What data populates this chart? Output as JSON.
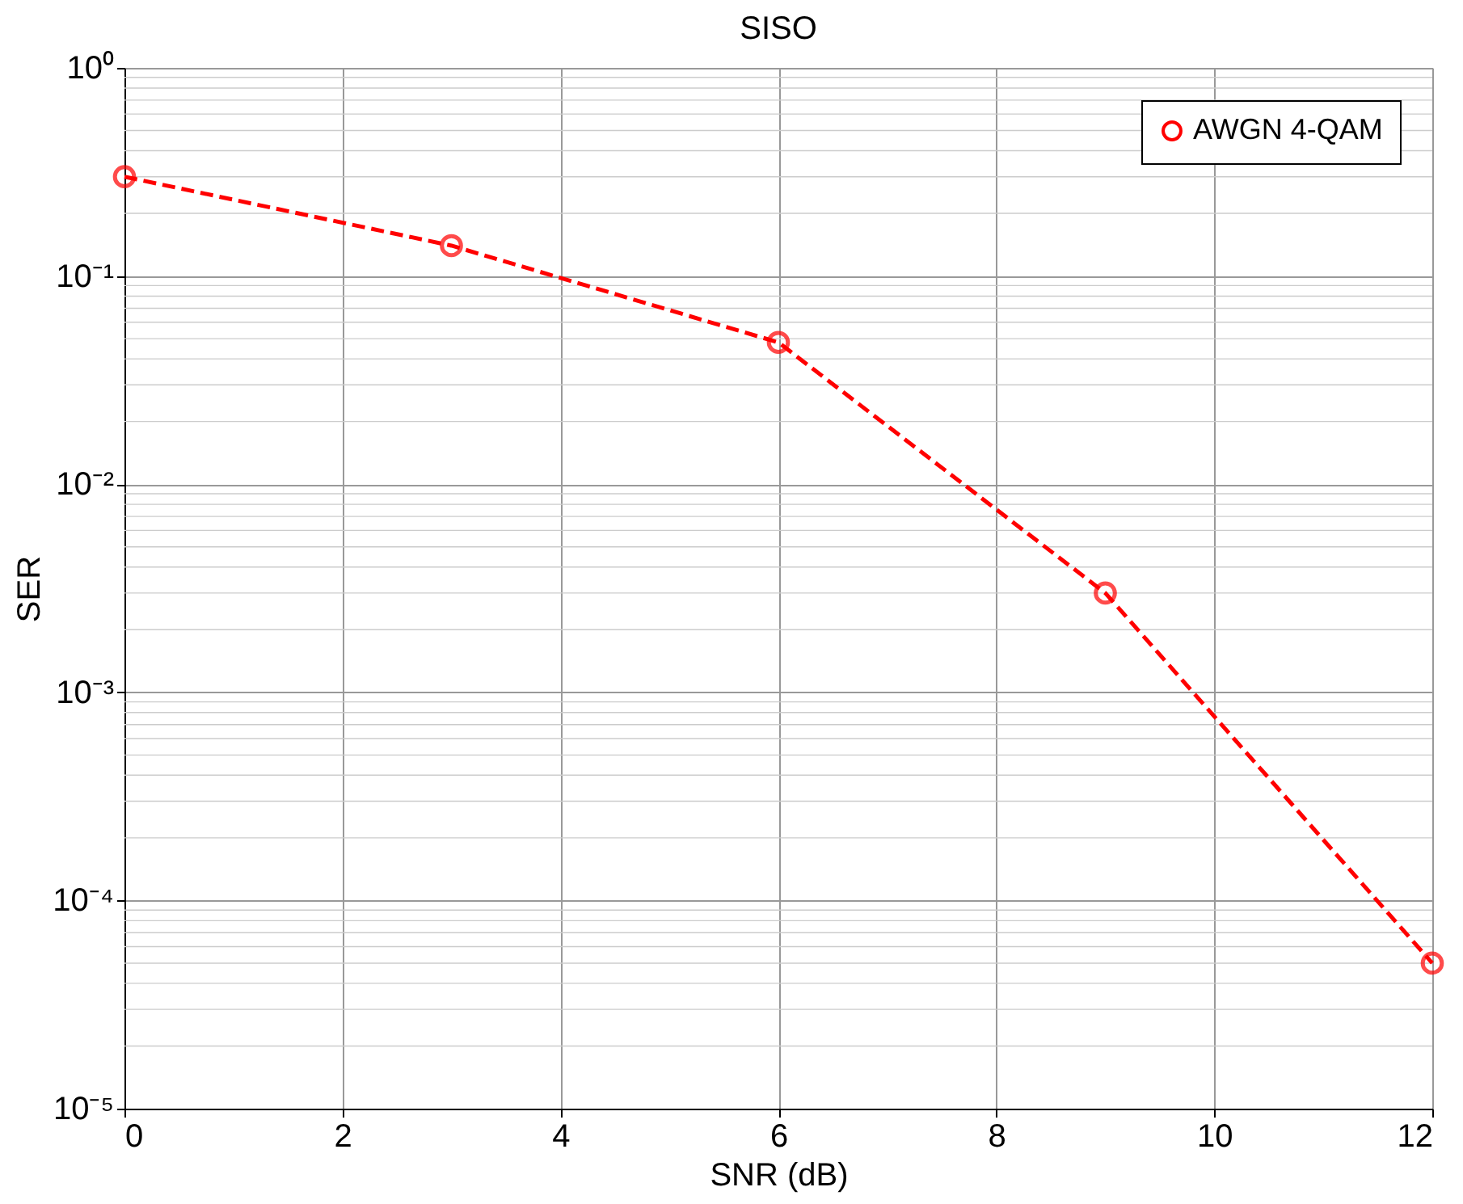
{
  "chart_data": {
    "type": "line",
    "title": "SISO",
    "xlabel": "SNR (dB)",
    "ylabel": "SER",
    "x": [
      0,
      3,
      6,
      9,
      12
    ],
    "series": [
      {
        "name": "AWGN 4-QAM",
        "color": "#ff0000",
        "values": [
          0.3,
          0.14,
          0.048,
          0.003,
          5e-05
        ]
      }
    ],
    "xlim": [
      0,
      12
    ],
    "xticks": [
      0,
      2,
      4,
      6,
      8,
      10,
      12
    ],
    "ylim": [
      1e-05,
      1
    ],
    "yticks": [
      {
        "value": 1e-05,
        "label": "10⁻⁵"
      },
      {
        "value": 0.0001,
        "label": "10⁻⁴"
      },
      {
        "value": 0.001,
        "label": "10⁻³"
      },
      {
        "value": 0.01,
        "label": "10⁻²"
      },
      {
        "value": 0.1,
        "label": "10⁻¹"
      },
      {
        "value": 1,
        "label": "10⁰"
      }
    ],
    "log": "y",
    "grid": true,
    "legend": "top right",
    "marker": "circle",
    "line_style": "dashed"
  }
}
